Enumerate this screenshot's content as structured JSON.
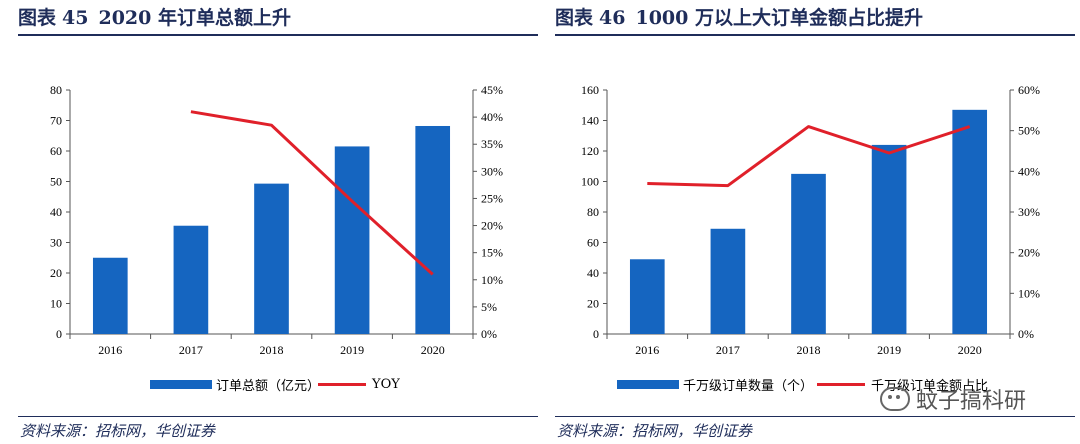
{
  "panel_left": {
    "title_prefix": "图表",
    "title_num": "45",
    "title_text": "2020 年订单总额上升",
    "source": "资料来源：招标网，华创证券",
    "legend": {
      "bar_label": "订单总额（亿元）",
      "line_label": "YOY"
    }
  },
  "panel_right": {
    "title_prefix": "图表",
    "title_num": "46",
    "title_text": "1000 万以上大订单金额占比提升",
    "source": "资料来源：招标网，华创证券",
    "legend": {
      "bar_label": "千万级订单数量（个）",
      "line_label": "千万级订单金额占比"
    }
  },
  "watermark": {
    "text": "蚊子搞科研"
  },
  "colors": {
    "bar": "#1565c0",
    "line": "#e0202a",
    "title": "#1f2d5a"
  },
  "chart_data": [
    {
      "type": "bar",
      "categories": [
        "2016",
        "2017",
        "2018",
        "2019",
        "2020"
      ],
      "series": [
        {
          "name": "订单总额（亿元）",
          "type": "bar",
          "axis": "left",
          "values": [
            25,
            35.5,
            49.3,
            61.5,
            68.2
          ]
        },
        {
          "name": "YOY",
          "type": "line",
          "axis": "right",
          "values": [
            null,
            0.41,
            0.385,
            0.245,
            0.11
          ]
        }
      ],
      "ylim": [
        0,
        80
      ],
      "yticks": [
        "0",
        "10",
        "20",
        "30",
        "40",
        "50",
        "60",
        "70",
        "80"
      ],
      "y2lim": [
        0,
        0.45
      ],
      "y2ticks": [
        "0%",
        "5%",
        "10%",
        "15%",
        "20%",
        "25%",
        "30%",
        "35%",
        "40%",
        "45%"
      ],
      "grid": false,
      "legend_position": "bottom"
    },
    {
      "type": "bar",
      "categories": [
        "2016",
        "2017",
        "2018",
        "2019",
        "2020"
      ],
      "series": [
        {
          "name": "千万级订单数量（个）",
          "type": "bar",
          "axis": "left",
          "values": [
            49,
            69,
            105,
            124,
            147
          ]
        },
        {
          "name": "千万级订单金额占比",
          "type": "line",
          "axis": "right",
          "values": [
            0.37,
            0.365,
            0.51,
            0.445,
            0.51
          ]
        }
      ],
      "ylim": [
        0,
        160
      ],
      "yticks": [
        "0",
        "20",
        "40",
        "60",
        "80",
        "100",
        "120",
        "140",
        "160"
      ],
      "y2lim": [
        0,
        0.6
      ],
      "y2ticks": [
        "0%",
        "10%",
        "20%",
        "30%",
        "40%",
        "50%",
        "60%"
      ],
      "grid": false,
      "legend_position": "bottom"
    }
  ]
}
